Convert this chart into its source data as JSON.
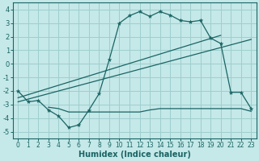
{
  "xlabel": "Humidex (Indice chaleur)",
  "bg_color": "#c5e8e8",
  "grid_color": "#9ecece",
  "line_color": "#1a6464",
  "xlim": [
    -0.5,
    23.5
  ],
  "ylim": [
    -5.5,
    4.5
  ],
  "xticks": [
    0,
    1,
    2,
    3,
    4,
    5,
    6,
    7,
    8,
    9,
    10,
    11,
    12,
    13,
    14,
    15,
    16,
    17,
    18,
    19,
    20,
    21,
    22,
    23
  ],
  "yticks": [
    -5,
    -4,
    -3,
    -2,
    -1,
    0,
    1,
    2,
    3,
    4
  ],
  "main_x": [
    0,
    1,
    2,
    3,
    4,
    5,
    6,
    7,
    8,
    9,
    10,
    11,
    12,
    13,
    14,
    15,
    16,
    17,
    18,
    19,
    20,
    21,
    22,
    23
  ],
  "main_y": [
    -2.0,
    -2.8,
    -2.7,
    -3.4,
    -3.85,
    -4.7,
    -4.5,
    -3.4,
    -2.2,
    0.3,
    3.0,
    3.55,
    3.85,
    3.5,
    3.85,
    3.6,
    3.2,
    3.1,
    3.2,
    1.9,
    1.5,
    -2.1,
    -2.1,
    -3.3
  ],
  "line1_x": [
    0,
    20
  ],
  "line1_y": [
    -2.5,
    2.1
  ],
  "line2_x": [
    0,
    23
  ],
  "line2_y": [
    -2.8,
    1.8
  ],
  "flat_x": [
    3,
    4,
    5,
    6,
    7,
    8,
    9,
    10,
    11,
    12,
    13,
    14,
    15,
    16,
    17,
    18,
    19,
    20,
    21,
    22,
    23
  ],
  "flat_y": [
    -3.2,
    -3.3,
    -3.55,
    -3.55,
    -3.55,
    -3.55,
    -3.55,
    -3.55,
    -3.55,
    -3.55,
    -3.4,
    -3.3,
    -3.3,
    -3.3,
    -3.3,
    -3.3,
    -3.3,
    -3.3,
    -3.3,
    -3.3,
    -3.5
  ]
}
